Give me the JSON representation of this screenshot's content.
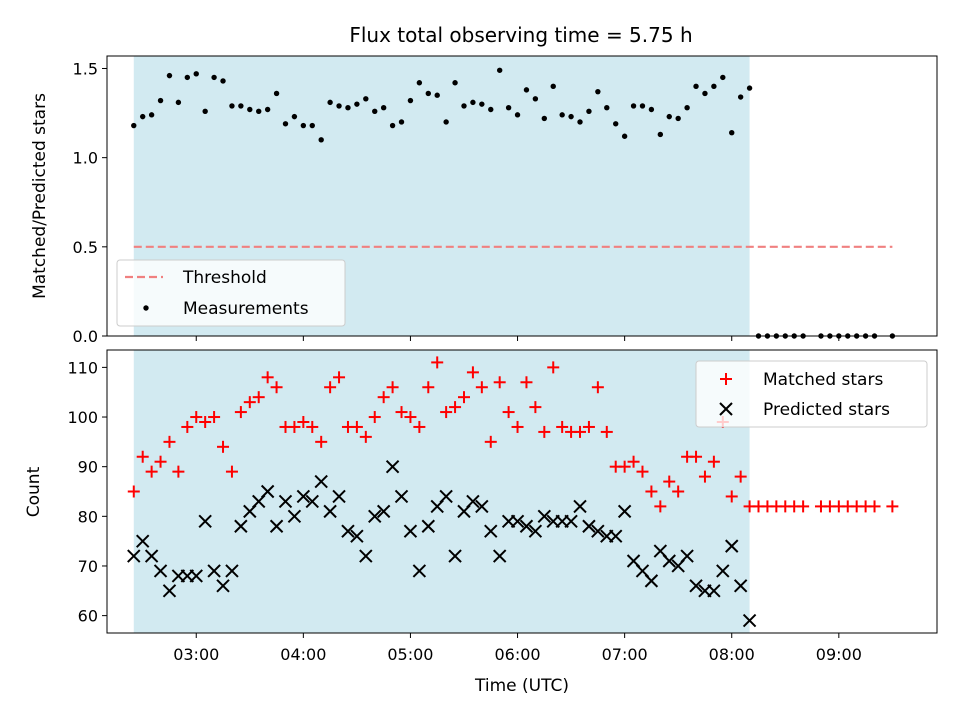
{
  "chart_data": [
    {
      "type": "scatter",
      "title": "Flux total observing time = 5.75 h",
      "xlabel": "",
      "ylabel": "Matched/Predicted stars",
      "xlim": [
        "02:10",
        "09:55"
      ],
      "ylim": [
        0,
        1.57
      ],
      "yticks": [
        0.0,
        0.5,
        1.0,
        1.5
      ],
      "ytick_labels": [
        "0.0",
        "0.5",
        "1.0",
        "1.5"
      ],
      "grid": false,
      "legend": "lower-left",
      "observing_window": {
        "start": "02:25",
        "end": "08:10",
        "color": "#add8e6"
      },
      "threshold": {
        "name": "Threshold",
        "y": 0.5,
        "x": [
          "02:25",
          "09:30"
        ],
        "color": "#f08080",
        "style": "dashed"
      },
      "series": [
        {
          "name": "Measurements",
          "color": "#000000",
          "marker": "dot",
          "points": [
            [
              "02:25",
              1.18
            ],
            [
              "02:30",
              1.23
            ],
            [
              "02:35",
              1.24
            ],
            [
              "02:40",
              1.32
            ],
            [
              "02:45",
              1.46
            ],
            [
              "02:50",
              1.31
            ],
            [
              "02:55",
              1.45
            ],
            [
              "03:00",
              1.47
            ],
            [
              "03:05",
              1.26
            ],
            [
              "03:10",
              1.45
            ],
            [
              "03:15",
              1.43
            ],
            [
              "03:20",
              1.29
            ],
            [
              "03:25",
              1.29
            ],
            [
              "03:30",
              1.27
            ],
            [
              "03:35",
              1.26
            ],
            [
              "03:40",
              1.27
            ],
            [
              "03:45",
              1.36
            ],
            [
              "03:50",
              1.19
            ],
            [
              "03:55",
              1.23
            ],
            [
              "04:00",
              1.18
            ],
            [
              "04:05",
              1.18
            ],
            [
              "04:10",
              1.1
            ],
            [
              "04:15",
              1.31
            ],
            [
              "04:20",
              1.29
            ],
            [
              "04:25",
              1.28
            ],
            [
              "04:30",
              1.3
            ],
            [
              "04:35",
              1.33
            ],
            [
              "04:40",
              1.26
            ],
            [
              "04:45",
              1.28
            ],
            [
              "04:50",
              1.18
            ],
            [
              "04:55",
              1.2
            ],
            [
              "05:00",
              1.32
            ],
            [
              "05:05",
              1.42
            ],
            [
              "05:10",
              1.36
            ],
            [
              "05:15",
              1.35
            ],
            [
              "05:20",
              1.2
            ],
            [
              "05:25",
              1.42
            ],
            [
              "05:30",
              1.29
            ],
            [
              "05:35",
              1.31
            ],
            [
              "05:40",
              1.3
            ],
            [
              "05:45",
              1.27
            ],
            [
              "05:50",
              1.49
            ],
            [
              "05:55",
              1.28
            ],
            [
              "06:00",
              1.24
            ],
            [
              "06:05",
              1.38
            ],
            [
              "06:10",
              1.33
            ],
            [
              "06:15",
              1.22
            ],
            [
              "06:20",
              1.4
            ],
            [
              "06:25",
              1.24
            ],
            [
              "06:30",
              1.23
            ],
            [
              "06:35",
              1.2
            ],
            [
              "06:40",
              1.26
            ],
            [
              "06:45",
              1.37
            ],
            [
              "06:50",
              1.28
            ],
            [
              "06:55",
              1.19
            ],
            [
              "07:00",
              1.12
            ],
            [
              "07:05",
              1.29
            ],
            [
              "07:10",
              1.29
            ],
            [
              "07:15",
              1.27
            ],
            [
              "07:20",
              1.13
            ],
            [
              "07:25",
              1.23
            ],
            [
              "07:30",
              1.22
            ],
            [
              "07:35",
              1.28
            ],
            [
              "07:40",
              1.4
            ],
            [
              "07:45",
              1.36
            ],
            [
              "07:50",
              1.4
            ],
            [
              "07:55",
              1.45
            ],
            [
              "08:00",
              1.14
            ],
            [
              "08:05",
              1.34
            ],
            [
              "08:10",
              1.39
            ],
            [
              "08:15",
              0.0
            ],
            [
              "08:20",
              0.0
            ],
            [
              "08:25",
              0.0
            ],
            [
              "08:30",
              0.0
            ],
            [
              "08:35",
              0.0
            ],
            [
              "08:40",
              0.0
            ],
            [
              "08:50",
              0.0
            ],
            [
              "08:55",
              0.0
            ],
            [
              "09:00",
              0.0
            ],
            [
              "09:05",
              0.0
            ],
            [
              "09:10",
              0.0
            ],
            [
              "09:15",
              0.0
            ],
            [
              "09:20",
              0.0
            ],
            [
              "09:30",
              0.0
            ]
          ]
        }
      ]
    },
    {
      "type": "scatter",
      "title": "",
      "xlabel": "Time (UTC)",
      "ylabel": "Count",
      "xlim": [
        "02:10",
        "09:55"
      ],
      "ylim": [
        56.5,
        113.5
      ],
      "yticks": [
        60,
        70,
        80,
        90,
        100,
        110
      ],
      "ytick_labels": [
        "60",
        "70",
        "80",
        "90",
        "100",
        "110"
      ],
      "xticks": [
        "03:00",
        "04:00",
        "05:00",
        "06:00",
        "07:00",
        "08:00",
        "09:00"
      ],
      "xtick_labels": [
        "03:00",
        "04:00",
        "05:00",
        "06:00",
        "07:00",
        "08:00",
        "09:00"
      ],
      "grid": false,
      "legend": "top-right",
      "observing_window": {
        "start": "02:25",
        "end": "08:10",
        "color": "#add8e6"
      },
      "series": [
        {
          "name": "Matched stars",
          "color": "#ff0000",
          "marker": "plus",
          "points": [
            [
              "02:25",
              85
            ],
            [
              "02:30",
              92
            ],
            [
              "02:35",
              89
            ],
            [
              "02:40",
              91
            ],
            [
              "02:45",
              95
            ],
            [
              "02:50",
              89
            ],
            [
              "02:55",
              98
            ],
            [
              "03:00",
              100
            ],
            [
              "03:05",
              99
            ],
            [
              "03:10",
              100
            ],
            [
              "03:15",
              94
            ],
            [
              "03:20",
              89
            ],
            [
              "03:25",
              101
            ],
            [
              "03:30",
              103
            ],
            [
              "03:35",
              104
            ],
            [
              "03:40",
              108
            ],
            [
              "03:45",
              106
            ],
            [
              "03:50",
              98
            ],
            [
              "03:55",
              98
            ],
            [
              "04:00",
              99
            ],
            [
              "04:05",
              98
            ],
            [
              "04:10",
              95
            ],
            [
              "04:15",
              106
            ],
            [
              "04:20",
              108
            ],
            [
              "04:25",
              98
            ],
            [
              "04:30",
              98
            ],
            [
              "04:35",
              96
            ],
            [
              "04:40",
              100
            ],
            [
              "04:45",
              104
            ],
            [
              "04:50",
              106
            ],
            [
              "04:55",
              101
            ],
            [
              "05:00",
              100
            ],
            [
              "05:05",
              98
            ],
            [
              "05:10",
              106
            ],
            [
              "05:15",
              111
            ],
            [
              "05:20",
              101
            ],
            [
              "05:25",
              102
            ],
            [
              "05:30",
              104
            ],
            [
              "05:35",
              109
            ],
            [
              "05:40",
              106
            ],
            [
              "05:45",
              95
            ],
            [
              "05:50",
              107
            ],
            [
              "05:55",
              101
            ],
            [
              "06:00",
              98
            ],
            [
              "06:05",
              107
            ],
            [
              "06:10",
              102
            ],
            [
              "06:15",
              97
            ],
            [
              "06:20",
              110
            ],
            [
              "06:25",
              98
            ],
            [
              "06:30",
              97
            ],
            [
              "06:35",
              97
            ],
            [
              "06:40",
              98
            ],
            [
              "06:45",
              106
            ],
            [
              "06:50",
              97
            ],
            [
              "06:55",
              90
            ],
            [
              "07:00",
              90
            ],
            [
              "07:05",
              91
            ],
            [
              "07:10",
              89
            ],
            [
              "07:15",
              85
            ],
            [
              "07:20",
              82
            ],
            [
              "07:25",
              87
            ],
            [
              "07:30",
              85
            ],
            [
              "07:35",
              92
            ],
            [
              "07:40",
              92
            ],
            [
              "07:45",
              88
            ],
            [
              "07:50",
              91
            ],
            [
              "07:55",
              99
            ],
            [
              "08:00",
              84
            ],
            [
              "08:05",
              88
            ],
            [
              "08:10",
              82
            ],
            [
              "08:15",
              82
            ],
            [
              "08:20",
              82
            ],
            [
              "08:25",
              82
            ],
            [
              "08:30",
              82
            ],
            [
              "08:35",
              82
            ],
            [
              "08:40",
              82
            ],
            [
              "08:50",
              82
            ],
            [
              "08:55",
              82
            ],
            [
              "09:00",
              82
            ],
            [
              "09:05",
              82
            ],
            [
              "09:10",
              82
            ],
            [
              "09:15",
              82
            ],
            [
              "09:20",
              82
            ],
            [
              "09:30",
              82
            ]
          ]
        },
        {
          "name": "Predicted stars",
          "color": "#000000",
          "marker": "x",
          "points": [
            [
              "02:25",
              72
            ],
            [
              "02:30",
              75
            ],
            [
              "02:35",
              72
            ],
            [
              "02:40",
              69
            ],
            [
              "02:45",
              65
            ],
            [
              "02:50",
              68
            ],
            [
              "02:55",
              68
            ],
            [
              "03:00",
              68
            ],
            [
              "03:05",
              79
            ],
            [
              "03:10",
              69
            ],
            [
              "03:15",
              66
            ],
            [
              "03:20",
              69
            ],
            [
              "03:25",
              78
            ],
            [
              "03:30",
              81
            ],
            [
              "03:35",
              83
            ],
            [
              "03:40",
              85
            ],
            [
              "03:45",
              78
            ],
            [
              "03:50",
              83
            ],
            [
              "03:55",
              80
            ],
            [
              "04:00",
              84
            ],
            [
              "04:05",
              83
            ],
            [
              "04:10",
              87
            ],
            [
              "04:15",
              81
            ],
            [
              "04:20",
              84
            ],
            [
              "04:25",
              77
            ],
            [
              "04:30",
              76
            ],
            [
              "04:35",
              72
            ],
            [
              "04:40",
              80
            ],
            [
              "04:45",
              81
            ],
            [
              "04:50",
              90
            ],
            [
              "04:55",
              84
            ],
            [
              "05:00",
              77
            ],
            [
              "05:05",
              69
            ],
            [
              "05:10",
              78
            ],
            [
              "05:15",
              82
            ],
            [
              "05:20",
              84
            ],
            [
              "05:25",
              72
            ],
            [
              "05:30",
              81
            ],
            [
              "05:35",
              83
            ],
            [
              "05:40",
              82
            ],
            [
              "05:45",
              77
            ],
            [
              "05:50",
              72
            ],
            [
              "05:55",
              79
            ],
            [
              "06:00",
              79
            ],
            [
              "06:05",
              78
            ],
            [
              "06:10",
              77
            ],
            [
              "06:15",
              80
            ],
            [
              "06:20",
              79
            ],
            [
              "06:25",
              79
            ],
            [
              "06:30",
              79
            ],
            [
              "06:35",
              82
            ],
            [
              "06:40",
              78
            ],
            [
              "06:45",
              77
            ],
            [
              "06:50",
              76
            ],
            [
              "06:55",
              76
            ],
            [
              "07:00",
              81
            ],
            [
              "07:05",
              71
            ],
            [
              "07:10",
              69
            ],
            [
              "07:15",
              67
            ],
            [
              "07:20",
              73
            ],
            [
              "07:25",
              71
            ],
            [
              "07:30",
              70
            ],
            [
              "07:35",
              72
            ],
            [
              "07:40",
              66
            ],
            [
              "07:45",
              65
            ],
            [
              "07:50",
              65
            ],
            [
              "07:55",
              69
            ],
            [
              "08:00",
              74
            ],
            [
              "08:05",
              66
            ],
            [
              "08:10",
              59
            ]
          ]
        }
      ]
    }
  ]
}
